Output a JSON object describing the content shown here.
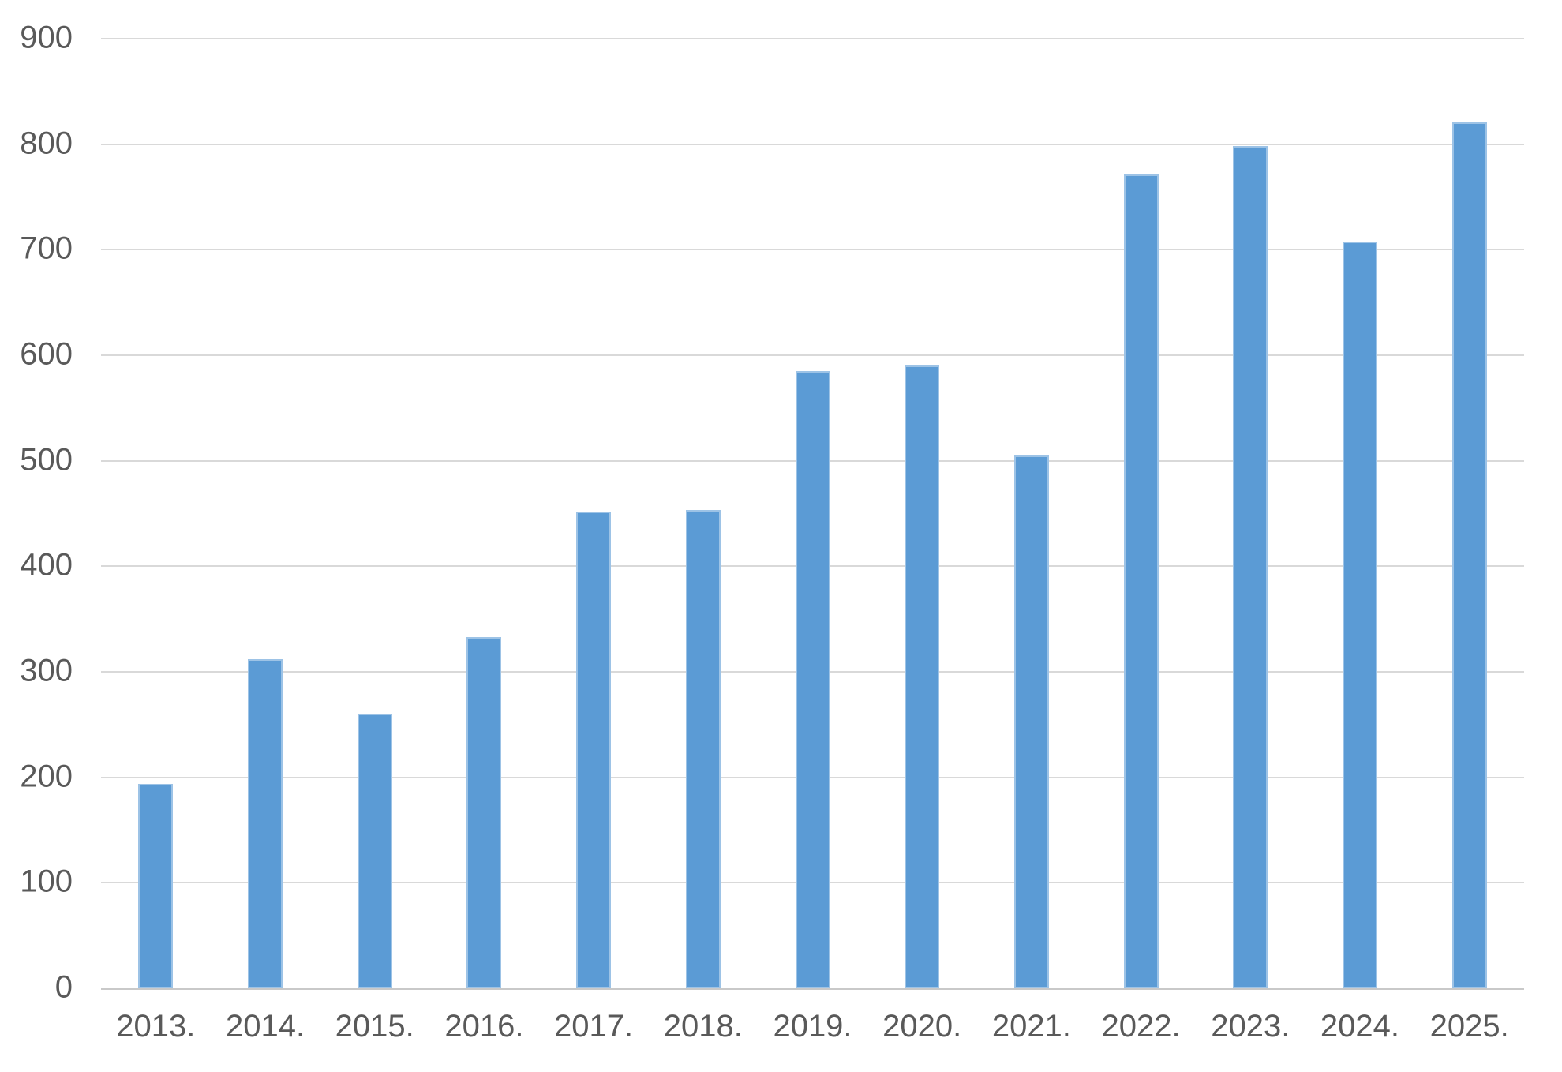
{
  "chart": {
    "background_color": "#ffffff",
    "bar_color": "#5b9bd5",
    "bar_edge_color": "#9dc3e6",
    "gridline_color": "#d9d9d9",
    "axis_line_color": "#c9c9c9",
    "tick_label_color": "#595959"
  },
  "chart_data": {
    "type": "bar",
    "categories": [
      "2013.",
      "2014.",
      "2015.",
      "2016.",
      "2017.",
      "2018.",
      "2019.",
      "2020.",
      "2021.",
      "2022.",
      "2023.",
      "2024.",
      "2025."
    ],
    "values": [
      194,
      312,
      260,
      333,
      452,
      453,
      585,
      590,
      505,
      771,
      798,
      708,
      821
    ],
    "series": [
      {
        "name": "",
        "values": [
          194,
          312,
          260,
          333,
          452,
          453,
          585,
          590,
          505,
          771,
          798,
          708,
          821
        ]
      }
    ],
    "title": "",
    "xlabel": "",
    "ylabel": "",
    "ylim": [
      0,
      900
    ],
    "ytick_interval": 100,
    "yticks": [
      0,
      100,
      200,
      300,
      400,
      500,
      600,
      700,
      800,
      900
    ],
    "grid": true,
    "legend": false
  }
}
